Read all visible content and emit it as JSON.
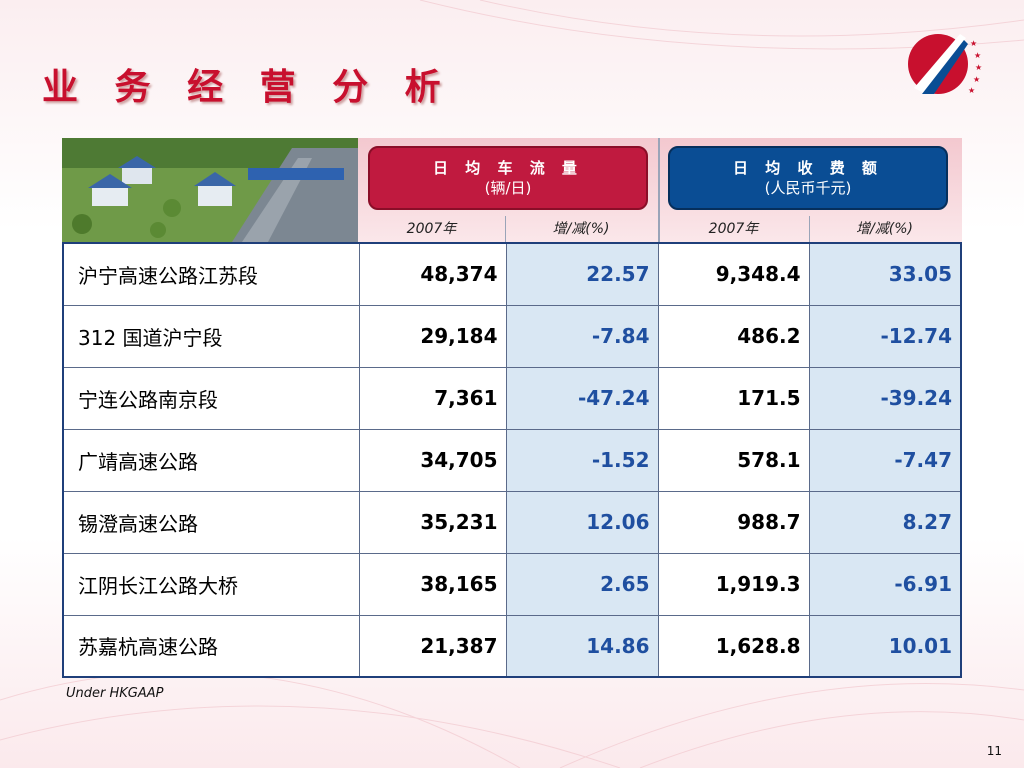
{
  "slide": {
    "title": "业 务 经 营 分 析",
    "footnote": "Under HKGAAP",
    "page_number": "11"
  },
  "table": {
    "group1": {
      "line1": "日 均 车 流 量",
      "line2": "(辆/日)"
    },
    "group2": {
      "line1": "日 均 收 费 额",
      "line2": "(人民币千元)"
    },
    "subheaders": [
      "2007年",
      "增/减(%)",
      "2007年",
      "增/减(%)"
    ],
    "rows": [
      {
        "name": "沪宁高速公路江苏段",
        "traffic": "48,374",
        "traffic_change": "22.57",
        "toll": "9,348.4",
        "toll_change": "33.05"
      },
      {
        "name": "312 国道沪宁段",
        "traffic": "29,184",
        "traffic_change": "-7.84",
        "toll": "486.2",
        "toll_change": "-12.74"
      },
      {
        "name": "宁连公路南京段",
        "traffic": "7,361",
        "traffic_change": "-47.24",
        "toll": "171.5",
        "toll_change": "-39.24"
      },
      {
        "name": "广靖高速公路",
        "traffic": "34,705",
        "traffic_change": "-1.52",
        "toll": "578.1",
        "toll_change": "-7.47"
      },
      {
        "name": "锡澄高速公路",
        "traffic": "35,231",
        "traffic_change": "12.06",
        "toll": "988.7",
        "toll_change": "8.27"
      },
      {
        "name": "江阴长江公路大桥",
        "traffic": "38,165",
        "traffic_change": "2.65",
        "toll": "1,919.3",
        "toll_change": "-6.91"
      },
      {
        "name": "苏嘉杭高速公路",
        "traffic": "21,387",
        "traffic_change": "14.86",
        "toll": "1,628.8",
        "toll_change": "10.01"
      }
    ]
  },
  "colors": {
    "title": "#c8102e",
    "traffic_header": "#c01a3f",
    "toll_header": "#0a4d94",
    "change_text": "#1f4fa0",
    "change_bg": "#d9e7f3"
  },
  "icons": {
    "logo": "expressway-logo",
    "photo": "toll-station-photo"
  }
}
